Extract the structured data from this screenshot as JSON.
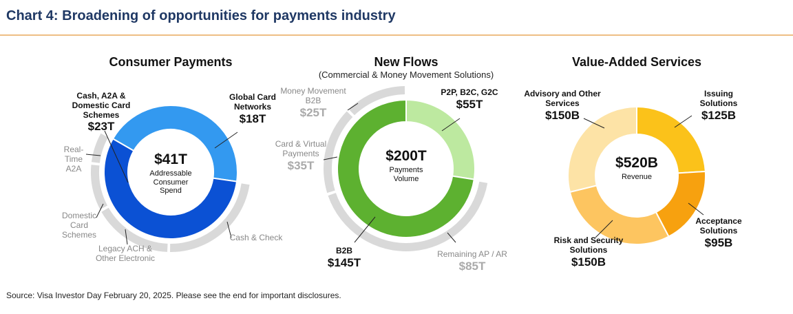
{
  "title": "Chart 4: Broadening of opportunities for payments industry",
  "source": "Source: Visa Investor Day February 20, 2025. Please see the end for important disclosures.",
  "chart_data": [
    {
      "type": "donut",
      "title": "Consumer Payments",
      "total": 41,
      "total_label": "$41T",
      "center_text": "Addressable Consumer Spend",
      "categories": [
        "Global Card Networks",
        "Cash, A2A & Domestic Card Schemes"
      ],
      "values": [
        18,
        23
      ],
      "value_labels": [
        "$18T",
        "$23T"
      ],
      "colors": [
        "#3399f0",
        "#0b51d4"
      ],
      "breakdown": {
        "categories": [
          "Cash & Check",
          "Legacy ACH & Other Electronic",
          "Domestic Card Schemes",
          "Real-Time A2A"
        ],
        "values": [
          9.5,
          6.8,
          4,
          2.7
        ],
        "color": "#d9d9d9"
      }
    },
    {
      "type": "donut",
      "title": "New Flows",
      "subtitle": "(Commercial & Money Movement Solutions)",
      "total": 200,
      "total_label": "$200T",
      "center_text": "Payments Volume",
      "categories": [
        "P2P, B2C, G2C",
        "B2B"
      ],
      "values": [
        55,
        145
      ],
      "value_labels": [
        "$55T",
        "$145T"
      ],
      "colors": [
        "#bde9a0",
        "#5db130"
      ],
      "breakdown": {
        "categories": [
          "Remaining AP / AR",
          "Card & Virtual Payments",
          "Money Movement B2B"
        ],
        "values": [
          85,
          35,
          25
        ],
        "value_labels": [
          "$85T",
          "$35T",
          "$25T"
        ],
        "color": "#d9d9d9"
      }
    },
    {
      "type": "donut",
      "title": "Value-Added Services",
      "total": 520,
      "total_label": "$520B",
      "center_text": "Revenue",
      "categories": [
        "Issuing Solutions",
        "Acceptance Solutions",
        "Risk and Security Solutions",
        "Advisory and Other Services"
      ],
      "values": [
        125,
        95,
        150,
        150
      ],
      "value_labels": [
        "$125B",
        "$95B",
        "$150B",
        "$150B"
      ],
      "colors": [
        "#fbc21a",
        "#f7a10f",
        "#fdc560",
        "#fde3a6"
      ]
    }
  ]
}
